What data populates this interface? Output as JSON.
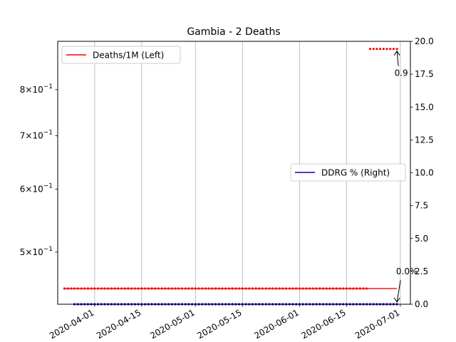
{
  "chart_data": {
    "type": "line",
    "title": "Gambia - 2 Deaths",
    "xlabel": "",
    "ylabel_left": "",
    "ylabel_right": "",
    "x_ticks": [
      "2020-04-01",
      "2020-04-15",
      "2020-05-01",
      "2020-05-15",
      "2020-06-01",
      "2020-06-15",
      "2020-07-01"
    ],
    "x_range": [
      "2020-03-21",
      "2020-07-04"
    ],
    "y_left": {
      "scale": "log",
      "range": [
        0.43,
        0.92
      ],
      "tick_labels": [
        {
          "value": 0.5,
          "mantissa": "5",
          "base": "10",
          "exp": "−1"
        },
        {
          "value": 0.6,
          "mantissa": "6",
          "base": "10",
          "exp": "−1"
        },
        {
          "value": 0.7,
          "mantissa": "7",
          "base": "10",
          "exp": "−1"
        },
        {
          "value": 0.8,
          "mantissa": "8",
          "base": "10",
          "exp": "−1"
        }
      ]
    },
    "y_right": {
      "scale": "linear",
      "range": [
        0,
        20
      ],
      "ticks": [
        "0.0",
        "2.5",
        "5.0",
        "7.5",
        "10.0",
        "12.5",
        "15.0",
        "17.5",
        "20.0"
      ]
    },
    "series": [
      {
        "name": "Deaths/1M (Left)",
        "color": "#ff0000",
        "axis": "left",
        "marker": "dots",
        "segments": [
          {
            "start": "2020-03-23",
            "end": "2020-06-21",
            "value": 0.45
          },
          {
            "start": "2020-06-22",
            "end": "2020-06-30",
            "value": 0.9
          }
        ],
        "line": [
          {
            "x": "2020-03-23",
            "y": 0.45
          },
          {
            "x": "2020-06-30",
            "y": 0.45
          }
        ]
      },
      {
        "name": "DDRG % (Right)",
        "color": "#0000cd",
        "axis": "right",
        "marker": "dots",
        "segments": [
          {
            "start": "2020-03-26",
            "end": "2020-06-30",
            "value": 0.0
          }
        ]
      }
    ],
    "annotations": [
      {
        "text": "0.9",
        "target_date": "2020-06-30",
        "target_value": 0.9,
        "axis": "left"
      },
      {
        "text": "0.0%",
        "target_date": "2020-06-30",
        "target_value": 0.0,
        "axis": "right"
      }
    ],
    "legends": [
      {
        "placement": "top-left",
        "series": "Deaths/1M (Left)"
      },
      {
        "placement": "center-right",
        "series": "DDRG % (Right)"
      }
    ],
    "grid": "vertical"
  }
}
